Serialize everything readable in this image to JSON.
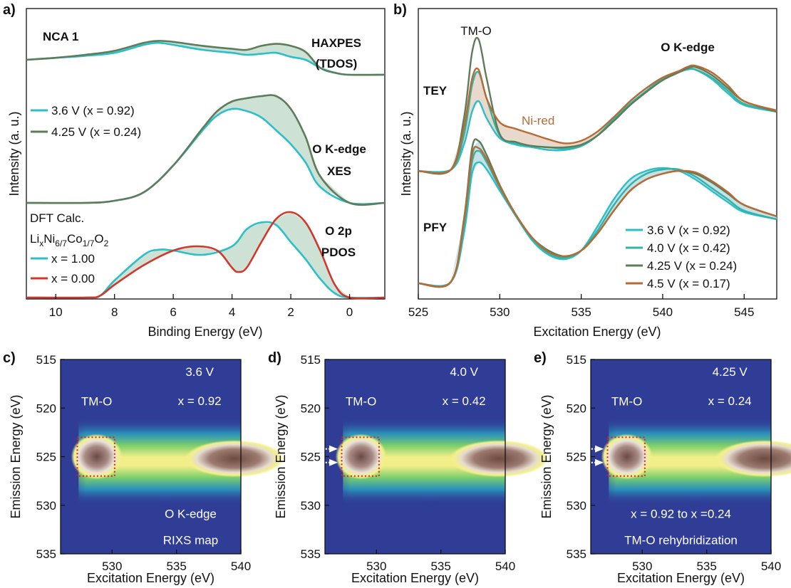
{
  "chart_data": [
    {
      "panel": "a)",
      "type": "line",
      "xlabel": "Binding Energy (eV)",
      "ylabel": "Intensity (a. u.)",
      "xlim": [
        11,
        -1.2
      ],
      "x_ticks": [
        "10",
        "8",
        "6",
        "4",
        "2",
        "0"
      ],
      "x_tick_values": [
        10,
        8,
        6,
        4,
        2,
        0
      ],
      "sample_label": "NCA 1",
      "legend_top": [
        "3.6 V (x = 0.92)",
        "4.25 V (x = 0.24)"
      ],
      "dft_title": "DFT Calc.",
      "dft_formula": {
        "a": "Li",
        "sub_a": "x",
        "b": "Ni",
        "sub_b": "6/7",
        "c": "Co",
        "sub_c": "1/7",
        "d": "O",
        "sub_d": "2"
      },
      "legend_dft": [
        "x = 1.00",
        "x = 0.00"
      ],
      "labels": {
        "haxpes": "HAXPES",
        "haxpes2": "(TDOS)",
        "xes": "O K-edge",
        "xes2": "XES",
        "pdos": "O 2p",
        "pdos2": "PDOS"
      },
      "colors": {
        "cyan": "#2bbfc9",
        "olive": "#5e7c5a",
        "red": "#d0382b",
        "fill": "#bcd7c6"
      },
      "series": [
        {
          "name": "3.6 V (x = 0.92)",
          "group": "HAXPES",
          "x": [
            11,
            10,
            9,
            8,
            7,
            6.5,
            6,
            5,
            4,
            3.5,
            3,
            2.5,
            2,
            1.5,
            1,
            0.5,
            0,
            -1.2
          ],
          "values": [
            0.7,
            0.72,
            0.74,
            0.77,
            0.85,
            0.87,
            0.85,
            0.8,
            0.77,
            0.75,
            0.76,
            0.77,
            0.73,
            0.7,
            0.62,
            0.57,
            0.55,
            0.55
          ]
        },
        {
          "name": "4.25 V (x = 0.24)",
          "group": "HAXPES",
          "x": [
            11,
            10,
            9,
            8,
            7,
            6.5,
            6,
            5,
            4,
            3.5,
            3,
            2.5,
            2,
            1.5,
            1,
            0.5,
            0,
            -1.2
          ],
          "values": [
            0.7,
            0.72,
            0.75,
            0.79,
            0.87,
            0.89,
            0.88,
            0.84,
            0.81,
            0.8,
            0.84,
            0.86,
            0.84,
            0.78,
            0.62,
            0.57,
            0.55,
            0.55
          ]
        },
        {
          "name": "3.6 V (x = 0.92)",
          "group": "XES",
          "x": [
            11,
            9,
            8,
            7,
            6,
            5,
            4.5,
            4,
            3.5,
            3,
            2.5,
            2,
            1.5,
            1,
            0,
            -1.2
          ],
          "values": [
            0.0,
            0.0,
            0.02,
            0.1,
            0.35,
            0.68,
            0.82,
            0.88,
            0.86,
            0.8,
            0.68,
            0.55,
            0.38,
            0.15,
            0.0,
            0.0
          ]
        },
        {
          "name": "4.25 V (x = 0.24)",
          "group": "XES",
          "x": [
            11,
            9,
            8,
            7,
            6,
            5,
            4.5,
            4,
            3.5,
            3,
            2.5,
            2,
            1.5,
            1,
            0,
            -1.2
          ],
          "values": [
            0.0,
            0.0,
            0.02,
            0.1,
            0.35,
            0.7,
            0.86,
            0.95,
            0.98,
            1.0,
            1.0,
            0.88,
            0.62,
            0.25,
            0.0,
            0.0
          ]
        },
        {
          "name": "x = 1.00",
          "group": "PDOS",
          "x": [
            11,
            9,
            8.5,
            8,
            7,
            6.5,
            6,
            5,
            4,
            3.5,
            3,
            2.5,
            2,
            1.5,
            1,
            0.5,
            0,
            -1.2
          ],
          "values": [
            0.0,
            0.0,
            0.02,
            0.2,
            0.5,
            0.56,
            0.55,
            0.5,
            0.6,
            0.8,
            0.88,
            0.85,
            0.65,
            0.45,
            0.22,
            0.05,
            0.0,
            0.0
          ]
        },
        {
          "name": "x = 0.00",
          "group": "PDOS",
          "x": [
            11,
            9,
            8.5,
            8,
            7,
            6,
            5.2,
            4.5,
            4,
            3.8,
            3.5,
            3,
            2.5,
            2,
            1.5,
            1,
            0.5,
            0,
            -1.2
          ],
          "values": [
            0.0,
            0.0,
            0.02,
            0.15,
            0.38,
            0.55,
            0.6,
            0.55,
            0.35,
            0.3,
            0.35,
            0.65,
            0.92,
            1.0,
            0.88,
            0.55,
            0.15,
            0.0,
            0.0
          ]
        }
      ]
    },
    {
      "panel": "b)",
      "type": "line",
      "xlabel": "Excitation Energy (eV)",
      "ylabel": "Intensity (a. u.)",
      "xlim": [
        525,
        547
      ],
      "x_ticks": [
        "525",
        "530",
        "535",
        "540",
        "545"
      ],
      "x_tick_values": [
        525,
        530,
        535,
        540,
        545
      ],
      "labels": {
        "tmo": "TM-O",
        "edge": "O K-edge",
        "tey": "TEY",
        "pfy": "PFY",
        "nired": "Ni-red"
      },
      "legend": [
        "3.6 V (x = 0.92)",
        "4.0 V (x = 0.42)",
        "4.25 V (x = 0.24)",
        "4.5 V (x = 0.17)"
      ],
      "colors": {
        "s1": "#2bbfc9",
        "s2": "#33b3a6",
        "s3": "#5e7c5a",
        "s4": "#b86a33",
        "fill_tey": "#e3d0c0",
        "fill_pfy": "#b6dbe2"
      },
      "series": [
        {
          "name": "3.6 V (x = 0.92)",
          "group": "TEY",
          "x": [
            525,
            527,
            527.8,
            528.3,
            528.7,
            529.2,
            530,
            531,
            532,
            533,
            534,
            535,
            536,
            537,
            538,
            539,
            540,
            541,
            541.5,
            542,
            543,
            544,
            545,
            547
          ],
          "values": [
            0.15,
            0.16,
            0.35,
            0.6,
            0.68,
            0.55,
            0.4,
            0.35,
            0.33,
            0.31,
            0.31,
            0.34,
            0.42,
            0.55,
            0.68,
            0.78,
            0.86,
            0.91,
            0.93,
            0.92,
            0.85,
            0.74,
            0.65,
            0.6
          ]
        },
        {
          "name": "4.0 V (x = 0.42)",
          "group": "TEY",
          "x": [
            525,
            527,
            527.8,
            528.3,
            528.7,
            529.2,
            530,
            531,
            532,
            533,
            534,
            535,
            536,
            537,
            538,
            539,
            540,
            541,
            541.5,
            542,
            543,
            544,
            545,
            547
          ],
          "values": [
            0.15,
            0.16,
            0.42,
            0.8,
            0.9,
            0.7,
            0.42,
            0.36,
            0.34,
            0.33,
            0.32,
            0.34,
            0.42,
            0.54,
            0.66,
            0.76,
            0.85,
            0.9,
            0.92,
            0.92,
            0.86,
            0.76,
            0.66,
            0.6
          ]
        },
        {
          "name": "4.25 V (x = 0.24)",
          "group": "TEY",
          "x": [
            525,
            527,
            527.8,
            528.3,
            528.7,
            529.2,
            530,
            531,
            532,
            533,
            534,
            535,
            536,
            537,
            538,
            539,
            540,
            541,
            541.5,
            542,
            543,
            544,
            545,
            547
          ],
          "values": [
            0.15,
            0.16,
            0.55,
            1.05,
            1.15,
            0.85,
            0.43,
            0.37,
            0.34,
            0.33,
            0.33,
            0.35,
            0.42,
            0.53,
            0.65,
            0.75,
            0.84,
            0.9,
            0.93,
            0.94,
            0.88,
            0.78,
            0.68,
            0.6
          ]
        },
        {
          "name": "4.5 V (x = 0.17)",
          "group": "TEY",
          "x": [
            525,
            527,
            527.8,
            528.3,
            528.7,
            529.2,
            530,
            531,
            532,
            533,
            534,
            535,
            536,
            537,
            538,
            539,
            540,
            541,
            541.5,
            542,
            543,
            544,
            545,
            547
          ],
          "values": [
            0.15,
            0.16,
            0.48,
            0.85,
            0.92,
            0.7,
            0.52,
            0.47,
            0.43,
            0.39,
            0.36,
            0.38,
            0.45,
            0.56,
            0.68,
            0.78,
            0.86,
            0.91,
            0.94,
            0.95,
            0.9,
            0.8,
            0.68,
            0.61
          ]
        },
        {
          "name": "3.6 V (x = 0.92)",
          "group": "PFY",
          "x": [
            525,
            527,
            527.8,
            528.3,
            528.7,
            529.2,
            530,
            531,
            532,
            533,
            534,
            535,
            536,
            537,
            538,
            539,
            540,
            541,
            542,
            543,
            544,
            545,
            547
          ],
          "values": [
            0.05,
            0.06,
            0.4,
            0.82,
            0.9,
            0.85,
            0.7,
            0.52,
            0.35,
            0.25,
            0.22,
            0.28,
            0.45,
            0.64,
            0.78,
            0.84,
            0.86,
            0.84,
            0.78,
            0.7,
            0.62,
            0.55,
            0.5
          ]
        },
        {
          "name": "4.0 V (x = 0.42)",
          "group": "PFY",
          "x": [
            525,
            527,
            527.8,
            528.3,
            528.7,
            529.2,
            530,
            531,
            532,
            533,
            534,
            535,
            536,
            537,
            538,
            539,
            540,
            541,
            542,
            543,
            544,
            545,
            547
          ],
          "values": [
            0.05,
            0.06,
            0.45,
            0.9,
            0.98,
            0.9,
            0.72,
            0.52,
            0.36,
            0.26,
            0.23,
            0.28,
            0.42,
            0.6,
            0.74,
            0.82,
            0.85,
            0.85,
            0.8,
            0.72,
            0.64,
            0.56,
            0.5
          ]
        },
        {
          "name": "4.25 V (x = 0.24)",
          "group": "PFY",
          "x": [
            525,
            527,
            527.8,
            528.3,
            528.7,
            529.2,
            530,
            531,
            532,
            533,
            534,
            535,
            536,
            537,
            538,
            539,
            540,
            541,
            542,
            543,
            544,
            545,
            547
          ],
          "values": [
            0.05,
            0.06,
            0.5,
            1.0,
            1.05,
            0.95,
            0.74,
            0.53,
            0.37,
            0.28,
            0.24,
            0.28,
            0.4,
            0.56,
            0.7,
            0.78,
            0.82,
            0.84,
            0.82,
            0.76,
            0.68,
            0.6,
            0.52
          ]
        },
        {
          "name": "4.5 V (x = 0.17)",
          "group": "PFY",
          "x": [
            525,
            527,
            527.8,
            528.3,
            528.7,
            529.2,
            530,
            531,
            532,
            533,
            534,
            535,
            536,
            537,
            538,
            539,
            540,
            541,
            542,
            543,
            544,
            545,
            547
          ],
          "values": [
            0.05,
            0.06,
            0.48,
            0.95,
            1.0,
            0.92,
            0.73,
            0.53,
            0.37,
            0.27,
            0.24,
            0.28,
            0.4,
            0.56,
            0.7,
            0.78,
            0.82,
            0.84,
            0.83,
            0.77,
            0.69,
            0.6,
            0.52
          ]
        }
      ]
    },
    {
      "panel": "c)",
      "type": "heatmap",
      "xlabel": "Excitation Energy (eV)",
      "ylabel": "Emission Energy (eV)",
      "xlim": [
        526,
        540
      ],
      "ylim": [
        515,
        535
      ],
      "x_ticks": [
        "530",
        "535",
        "540"
      ],
      "x_tick_values": [
        530,
        535,
        540
      ],
      "y_ticks": [
        "515",
        "520",
        "525",
        "530",
        "535"
      ],
      "y_tick_values": [
        515,
        520,
        525,
        530,
        535
      ],
      "tmo_label": "TM-O",
      "voltage": "3.6 V",
      "composition": "x = 0.92",
      "note1": "O K-edge",
      "note2": "RIXS map",
      "arrows": false
    },
    {
      "panel": "d)",
      "type": "heatmap",
      "xlabel": "Excitation Energy (eV)",
      "ylabel": "Emission Energy (eV)",
      "xlim": [
        526,
        540
      ],
      "ylim": [
        515,
        535
      ],
      "x_ticks": [
        "530",
        "535",
        "540"
      ],
      "x_tick_values": [
        530,
        535,
        540
      ],
      "y_ticks": [
        "515",
        "520",
        "525",
        "530",
        "535"
      ],
      "y_tick_values": [
        515,
        520,
        525,
        530,
        535
      ],
      "tmo_label": "TM-O",
      "voltage": "4.0 V",
      "composition": "x = 0.42",
      "note1": "",
      "note2": "",
      "arrows": true
    },
    {
      "panel": "e)",
      "type": "heatmap",
      "xlabel": "Excitation Energy (eV)",
      "ylabel": "Emission Energy (eV)",
      "xlim": [
        526,
        540
      ],
      "ylim": [
        515,
        535
      ],
      "x_ticks": [
        "530",
        "535",
        "540"
      ],
      "x_tick_values": [
        530,
        535,
        540
      ],
      "y_ticks": [
        "515",
        "520",
        "525",
        "530",
        "535"
      ],
      "y_tick_values": [
        515,
        520,
        525,
        530,
        535
      ],
      "tmo_label": "TM-O",
      "voltage": "4.25 V",
      "composition": "x = 0.24",
      "note1": "x = 0.92 to x =0.24",
      "note2": "TM-O rehybridization",
      "arrows": true
    }
  ]
}
